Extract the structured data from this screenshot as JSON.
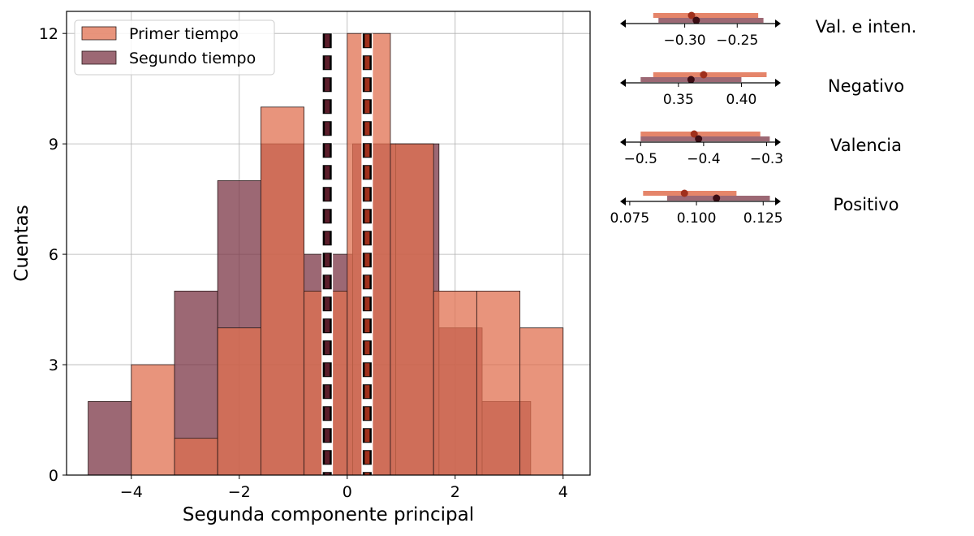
{
  "chart_data": [
    {
      "type": "histogram",
      "xlabel": "Segunda componente principal",
      "ylabel": "Cuentas",
      "xlim": [
        -5.2,
        4.5
      ],
      "ylim": [
        0,
        12.6
      ],
      "xticks": [
        -4,
        -2,
        0,
        2,
        4
      ],
      "xtick_labels": [
        "−4",
        "−2",
        "0",
        "2",
        "4"
      ],
      "yticks": [
        0,
        3,
        6,
        9,
        12
      ],
      "ytick_labels": [
        "0",
        "3",
        "6",
        "9",
        "12"
      ],
      "grid": true,
      "legend_position": "top-left",
      "series": [
        {
          "name": "Primer tiempo",
          "color": "#e07050",
          "bin_edges": [
            -4.0,
            -3.2,
            -2.4,
            -1.6,
            -0.8,
            0.0,
            0.8,
            1.6,
            2.4,
            3.2,
            4.0
          ],
          "counts": [
            3,
            1,
            4,
            10,
            5,
            12,
            9,
            5,
            5,
            4
          ],
          "mean_line": 0.37
        },
        {
          "name": "Segundo tiempo",
          "color": "#7b3545",
          "bin_edges": [
            -4.8,
            -4.0,
            -3.2,
            -2.4,
            -1.6,
            -0.8,
            0.1,
            0.9,
            1.7,
            2.5,
            3.4
          ],
          "counts": [
            2,
            0,
            5,
            8,
            9,
            6,
            9,
            9,
            4,
            2
          ],
          "mean_line": -0.37
        }
      ]
    },
    {
      "type": "interval",
      "label": "Val. e inten.",
      "xlim": [
        -0.36,
        -0.21
      ],
      "xticks": [
        -0.3,
        -0.25
      ],
      "xtick_labels": [
        "−0.30",
        "−0.25"
      ],
      "series": [
        {
          "name": "Primer tiempo",
          "color": "#e07050",
          "low": -0.33,
          "high": -0.23,
          "mean": -0.2935
        },
        {
          "name": "Segundo tiempo",
          "color": "#7b3545",
          "low": -0.325,
          "high": -0.225,
          "mean": -0.289
        }
      ]
    },
    {
      "type": "interval",
      "label": "Negativo",
      "xlim": [
        0.305,
        0.43
      ],
      "xticks": [
        0.35,
        0.4
      ],
      "xtick_labels": [
        "0.35",
        "0.40"
      ],
      "series": [
        {
          "name": "Primer tiempo",
          "color": "#e07050",
          "low": 0.33,
          "high": 0.42,
          "mean": 0.37
        },
        {
          "name": "Segundo tiempo",
          "color": "#7b3545",
          "low": 0.32,
          "high": 0.4,
          "mean": 0.36
        }
      ]
    },
    {
      "type": "interval",
      "label": "Valencia",
      "xlim": [
        -0.53,
        -0.28
      ],
      "xticks": [
        -0.5,
        -0.4,
        -0.3
      ],
      "xtick_labels": [
        "−0.5",
        "−0.4",
        "−0.3"
      ],
      "series": [
        {
          "name": "Primer tiempo",
          "color": "#e07050",
          "low": -0.5,
          "high": -0.31,
          "mean": -0.415
        },
        {
          "name": "Segundo tiempo",
          "color": "#7b3545",
          "low": -0.5,
          "high": -0.295,
          "mean": -0.408
        }
      ]
    },
    {
      "type": "interval",
      "label": "Positivo",
      "xlim": [
        0.072,
        0.131
      ],
      "xticks": [
        0.075,
        0.1,
        0.125
      ],
      "xtick_labels": [
        "0.075",
        "0.100",
        "0.125"
      ],
      "series": [
        {
          "name": "Primer tiempo",
          "color": "#e07050",
          "low": 0.08,
          "high": 0.115,
          "mean": 0.0955
        },
        {
          "name": "Segundo tiempo",
          "color": "#7b3545",
          "low": 0.089,
          "high": 0.1275,
          "mean": 0.1075
        }
      ]
    }
  ]
}
